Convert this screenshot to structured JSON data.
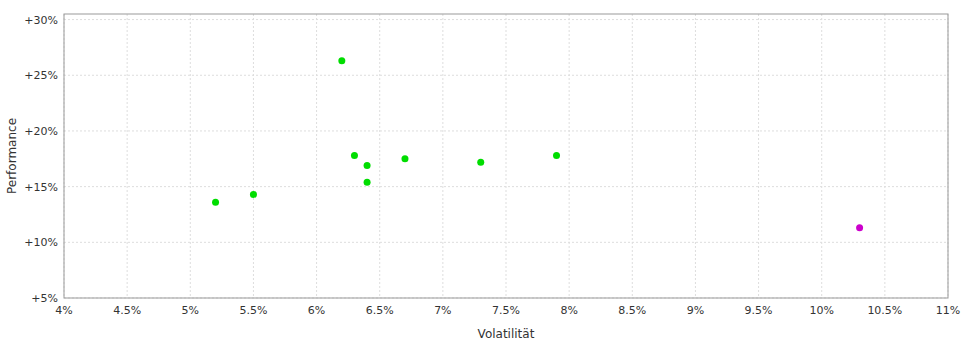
{
  "chart_data": {
    "type": "scatter",
    "x_label": "Volatilität",
    "y_label": "Performance",
    "xlim": [
      0.04,
      0.11
    ],
    "ylim": [
      0.05,
      0.305
    ],
    "xticks": [
      {
        "value": 0.04,
        "label": "4%"
      },
      {
        "value": 0.045,
        "label": "4.5%"
      },
      {
        "value": 0.05,
        "label": "5%"
      },
      {
        "value": 0.055,
        "label": "5.5%"
      },
      {
        "value": 0.06,
        "label": "6%"
      },
      {
        "value": 0.065,
        "label": "6.5%"
      },
      {
        "value": 0.07,
        "label": "7%"
      },
      {
        "value": 0.075,
        "label": "7.5%"
      },
      {
        "value": 0.08,
        "label": "8%"
      },
      {
        "value": 0.085,
        "label": "8.5%"
      },
      {
        "value": 0.09,
        "label": "9%"
      },
      {
        "value": 0.095,
        "label": "9.5%"
      },
      {
        "value": 0.1,
        "label": "10%"
      },
      {
        "value": 0.105,
        "label": "10.5%"
      },
      {
        "value": 0.11,
        "label": "11%"
      }
    ],
    "yticks": [
      {
        "value": 0.05,
        "label": "+5%"
      },
      {
        "value": 0.1,
        "label": "+10%"
      },
      {
        "value": 0.15,
        "label": "+15%"
      },
      {
        "value": 0.2,
        "label": "+20%"
      },
      {
        "value": 0.25,
        "label": "+25%"
      },
      {
        "value": 0.3,
        "label": "+30%"
      }
    ],
    "grid": true,
    "series": [
      {
        "color": "#00dd00",
        "x": [
          0.052,
          0.055,
          0.062,
          0.063,
          0.064,
          0.064,
          0.067,
          0.073,
          0.079
        ],
        "values": [
          0.136,
          0.143,
          0.263,
          0.178,
          0.169,
          0.154,
          0.175,
          0.172,
          0.178
        ]
      },
      {
        "color": "#cc00cc",
        "x": [
          0.103
        ],
        "values": [
          0.113
        ]
      }
    ]
  }
}
